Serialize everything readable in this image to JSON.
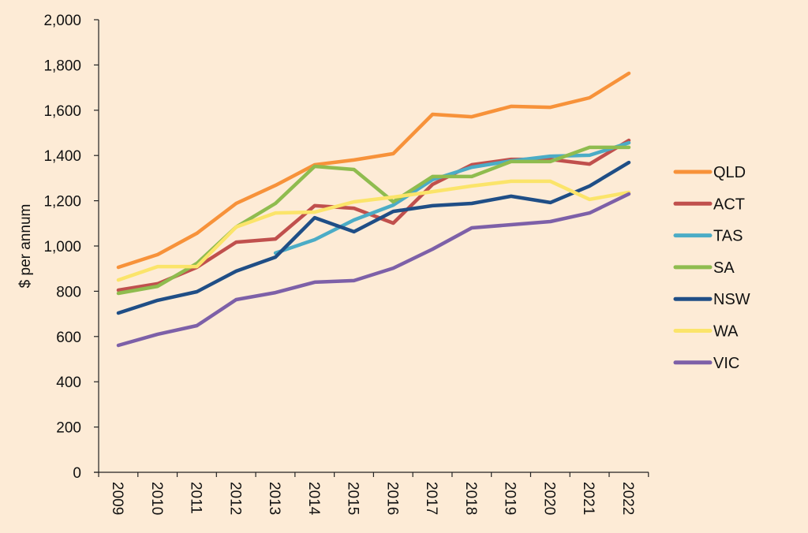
{
  "chart_data": {
    "type": "line",
    "title": "",
    "xlabel": "",
    "ylabel": "$ per annum",
    "ylim": [
      0,
      2000
    ],
    "yticks": [
      0,
      200,
      400,
      600,
      800,
      1000,
      1200,
      1400,
      1600,
      1800,
      2000
    ],
    "ytick_labels": [
      "0",
      "200",
      "400",
      "600",
      "800",
      "1,000",
      "1,200",
      "1,400",
      "1,600",
      "1,800",
      "2,000"
    ],
    "x": [
      "2009",
      "2010",
      "2011",
      "2012",
      "2013",
      "2014",
      "2015",
      "2016",
      "2017",
      "2018",
      "2019",
      "2020",
      "2021",
      "2022"
    ],
    "grid": false,
    "legend_position": "right",
    "background": "#fdebd6",
    "series": [
      {
        "name": "QLD",
        "color": "#f7923a",
        "values": [
          906,
          962,
          1056,
          1188,
          1268,
          1359,
          1380,
          1408,
          1582,
          1571,
          1617,
          1613,
          1655,
          1763
        ]
      },
      {
        "name": "ACT",
        "color": "#c0504d",
        "values": [
          805,
          833,
          906,
          1017,
          1031,
          1178,
          1167,
          1101,
          1272,
          1359,
          1383,
          1383,
          1362,
          1467
        ]
      },
      {
        "name": "TAS",
        "color": "#4bacc6",
        "values": [
          null,
          null,
          null,
          null,
          969,
          1028,
          1115,
          1181,
          1293,
          1348,
          1376,
          1397,
          1401,
          1456
        ]
      },
      {
        "name": "SA",
        "color": "#8fbc4f",
        "values": [
          791,
          822,
          923,
          1084,
          1188,
          1352,
          1338,
          1195,
          1307,
          1307,
          1373,
          1373,
          1436,
          1436
        ]
      },
      {
        "name": "NSW",
        "color": "#1f4e86",
        "values": [
          704,
          760,
          798,
          889,
          951,
          1125,
          1063,
          1153,
          1178,
          1188,
          1220,
          1192,
          1265,
          1369
        ]
      },
      {
        "name": "WA",
        "color": "#fbe46a",
        "values": [
          850,
          909,
          909,
          1084,
          1146,
          1150,
          1195,
          1216,
          1240,
          1265,
          1286,
          1286,
          1206,
          1237
        ]
      },
      {
        "name": "VIC",
        "color": "#7d60a8",
        "values": [
          561,
          610,
          648,
          763,
          794,
          840,
          847,
          902,
          986,
          1080,
          1094,
          1108,
          1146,
          1230
        ]
      }
    ]
  }
}
